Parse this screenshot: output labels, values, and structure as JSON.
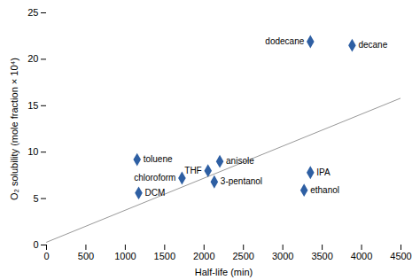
{
  "chart_data": {
    "type": "scatter",
    "xlabel": "Half-life (min)",
    "ylabel": "O₂ solubility (mole fraction × 10⁴)",
    "xlim": [
      0,
      4500
    ],
    "ylim": [
      0,
      25
    ],
    "xticks": [
      0,
      500,
      1000,
      1500,
      2000,
      2500,
      3000,
      3500,
      4000,
      4500
    ],
    "yticks": [
      0,
      5,
      10,
      15,
      20,
      25
    ],
    "grid": false,
    "series": [
      {
        "type": "line",
        "color": "#999999",
        "x": [
          0,
          4500
        ],
        "values": [
          0.3,
          15.825
        ]
      },
      {
        "type": "scatter",
        "color": "#2E5FA3",
        "marker": "diamond",
        "labels": [
          "toluene",
          "DCM",
          "chloroform",
          "THF",
          "3-pentanol",
          "anisole",
          "dodecane",
          "decane",
          "IPA",
          "ethanol"
        ],
        "x": [
          1150,
          1170,
          1720,
          2050,
          2130,
          2200,
          3350,
          3880,
          3350,
          3270
        ],
        "values": [
          9.2,
          5.6,
          7.2,
          8.0,
          6.8,
          9.0,
          21.9,
          21.5,
          7.8,
          5.9
        ]
      }
    ]
  }
}
